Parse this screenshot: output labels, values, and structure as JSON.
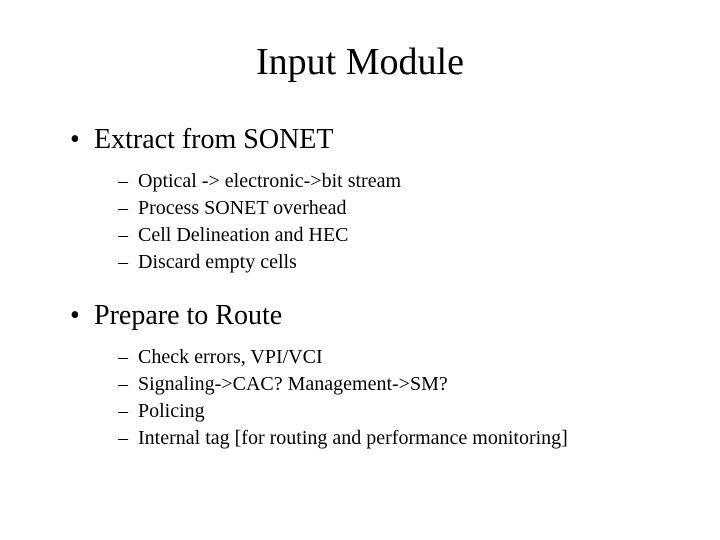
{
  "title": "Input Module",
  "sections": [
    {
      "heading": "Extract from SONET",
      "items": [
        "Optical -> electronic->bit stream",
        "Process SONET overhead",
        "Cell Delineation and HEC",
        "Discard empty cells"
      ]
    },
    {
      "heading": "Prepare to Route",
      "items": [
        "Check errors, VPI/VCI",
        "Signaling->CAC? Management->SM?",
        "Policing",
        "Internal tag [for routing and performance monitoring]"
      ]
    }
  ],
  "bullet_char": "•",
  "dash_char": "–",
  "colors": {
    "background": "#ffffff",
    "text": "#000000"
  },
  "fonts": {
    "family": "Times New Roman",
    "title_size_pt": 38,
    "heading_size_pt": 28,
    "item_size_pt": 20
  }
}
